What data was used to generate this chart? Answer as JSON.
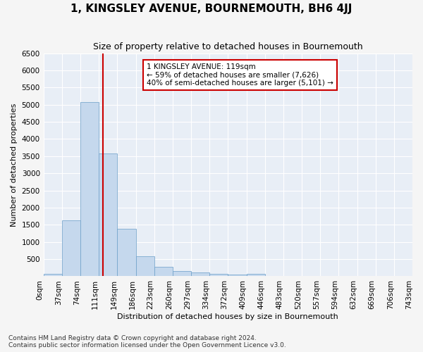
{
  "title": "1, KINGSLEY AVENUE, BOURNEMOUTH, BH6 4JJ",
  "subtitle": "Size of property relative to detached houses in Bournemouth",
  "xlabel": "Distribution of detached houses by size in Bournemouth",
  "ylabel": "Number of detached properties",
  "footer_line1": "Contains HM Land Registry data © Crown copyright and database right 2024.",
  "footer_line2": "Contains public sector information licensed under the Open Government Licence v3.0.",
  "bar_values": [
    75,
    1625,
    5075,
    3575,
    1375,
    590,
    285,
    145,
    110,
    75,
    55,
    65,
    10,
    10,
    10,
    10,
    10,
    10,
    10,
    10
  ],
  "bar_labels": [
    "0sqm",
    "37sqm",
    "74sqm",
    "111sqm",
    "149sqm",
    "186sqm",
    "223sqm",
    "260sqm",
    "297sqm",
    "334sqm",
    "372sqm",
    "409sqm",
    "446sqm",
    "483sqm",
    "520sqm",
    "557sqm",
    "594sqm",
    "632sqm",
    "669sqm",
    "706sqm",
    "743sqm"
  ],
  "ylim": [
    0,
    6500
  ],
  "yticks": [
    0,
    500,
    1000,
    1500,
    2000,
    2500,
    3000,
    3500,
    4000,
    4500,
    5000,
    5500,
    6000,
    6500
  ],
  "bar_color": "#c5d8ed",
  "bar_edge_color": "#6a9ec8",
  "vline_position": 3.216,
  "annotation_text": "1 KINGSLEY AVENUE: 119sqm\n← 59% of detached houses are smaller (7,626)\n40% of semi-detached houses are larger (5,101) →",
  "annotation_box_facecolor": "#ffffff",
  "annotation_box_edgecolor": "#cc0000",
  "vline_color": "#cc0000",
  "plot_bg_color": "#e8eef6",
  "fig_bg_color": "#f5f5f5",
  "grid_color": "#ffffff",
  "title_fontsize": 11,
  "subtitle_fontsize": 9,
  "axis_label_fontsize": 8,
  "tick_fontsize": 7.5,
  "footer_fontsize": 6.5,
  "annotation_fontsize": 7.5
}
